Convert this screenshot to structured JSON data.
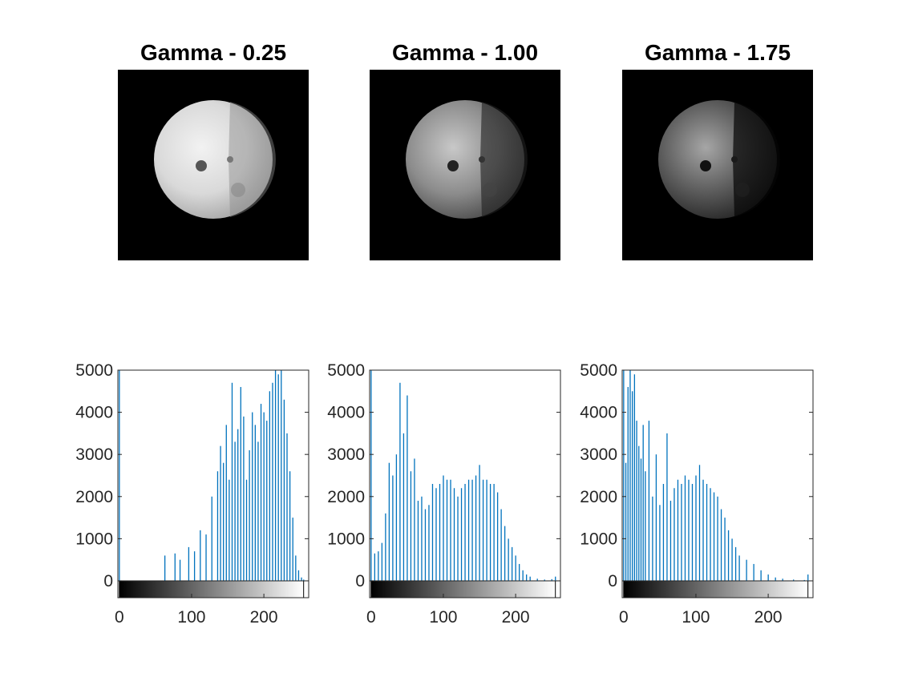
{
  "figure": {
    "titles": [
      "Gamma - 0.25",
      "Gamma - 1.00",
      "Gamma - 1.75"
    ],
    "image_background": "#000000",
    "bar_color": "#0072BD",
    "axis_color": "#262626"
  },
  "chart_data": [
    {
      "type": "bar",
      "title": "",
      "xlabel": "",
      "ylabel": "",
      "gamma": 0.25,
      "xlim": [
        -2,
        262
      ],
      "ylim": [
        -400,
        5000
      ],
      "x_ticks": [
        0,
        100,
        200
      ],
      "y_ticks": [
        0,
        1000,
        2000,
        3000,
        4000,
        5000
      ],
      "colorbar": "gray",
      "x": [
        0,
        63,
        77,
        84,
        96,
        104,
        112,
        120,
        128,
        136,
        140,
        144,
        148,
        152,
        156,
        160,
        164,
        168,
        172,
        176,
        180,
        184,
        188,
        192,
        196,
        200,
        204,
        208,
        212,
        216,
        220,
        224,
        228,
        232,
        236,
        240,
        244,
        248,
        252,
        255
      ],
      "values": [
        5000,
        600,
        650,
        500,
        800,
        700,
        1200,
        1100,
        2000,
        2600,
        3200,
        2800,
        3700,
        2400,
        4700,
        3300,
        3600,
        4600,
        3900,
        2400,
        3100,
        4000,
        3700,
        3300,
        4200,
        4000,
        3800,
        4500,
        4700,
        5000,
        4900,
        5000,
        4300,
        3500,
        2600,
        1500,
        600,
        250,
        80,
        30
      ]
    },
    {
      "type": "bar",
      "title": "",
      "xlabel": "",
      "ylabel": "",
      "gamma": 1.0,
      "xlim": [
        -2,
        262
      ],
      "ylim": [
        -400,
        5000
      ],
      "x_ticks": [
        0,
        100,
        200
      ],
      "y_ticks": [
        0,
        1000,
        2000,
        3000,
        4000,
        5000
      ],
      "colorbar": "gray",
      "x": [
        0,
        5,
        10,
        15,
        20,
        25,
        30,
        35,
        40,
        45,
        50,
        55,
        60,
        65,
        70,
        75,
        80,
        85,
        90,
        95,
        100,
        105,
        110,
        115,
        120,
        125,
        130,
        135,
        140,
        145,
        150,
        155,
        160,
        165,
        170,
        175,
        180,
        185,
        190,
        195,
        200,
        205,
        210,
        215,
        220,
        230,
        240,
        250,
        255
      ],
      "values": [
        5000,
        650,
        700,
        900,
        1600,
        2800,
        2500,
        3000,
        4700,
        3500,
        4400,
        2600,
        2900,
        1900,
        2000,
        1700,
        1800,
        2300,
        2200,
        2300,
        2500,
        2400,
        2400,
        2200,
        2000,
        2200,
        2300,
        2400,
        2400,
        2500,
        2750,
        2400,
        2400,
        2300,
        2300,
        2100,
        1700,
        1300,
        1000,
        800,
        600,
        400,
        250,
        150,
        100,
        50,
        30,
        40,
        100
      ]
    },
    {
      "type": "bar",
      "title": "",
      "xlabel": "",
      "ylabel": "",
      "gamma": 1.75,
      "xlim": [
        -2,
        262
      ],
      "ylim": [
        -400,
        5000
      ],
      "x_ticks": [
        0,
        100,
        200
      ],
      "y_ticks": [
        0,
        1000,
        2000,
        3000,
        4000,
        5000
      ],
      "colorbar": "gray",
      "x": [
        0,
        3,
        6,
        9,
        12,
        15,
        18,
        21,
        24,
        27,
        30,
        35,
        40,
        45,
        50,
        55,
        60,
        65,
        70,
        75,
        80,
        85,
        90,
        95,
        100,
        105,
        110,
        115,
        120,
        125,
        130,
        135,
        140,
        145,
        150,
        155,
        160,
        170,
        180,
        190,
        200,
        210,
        220,
        235,
        250,
        255
      ],
      "values": [
        5000,
        2800,
        4600,
        5000,
        4500,
        4900,
        3800,
        3200,
        2900,
        3700,
        2600,
        3800,
        2000,
        3000,
        1800,
        2300,
        3500,
        1900,
        2200,
        2400,
        2300,
        2500,
        2400,
        2300,
        2500,
        2750,
        2400,
        2300,
        2200,
        2100,
        2000,
        1700,
        1500,
        1200,
        1000,
        800,
        600,
        500,
        400,
        250,
        150,
        80,
        50,
        30,
        20,
        150
      ]
    }
  ]
}
